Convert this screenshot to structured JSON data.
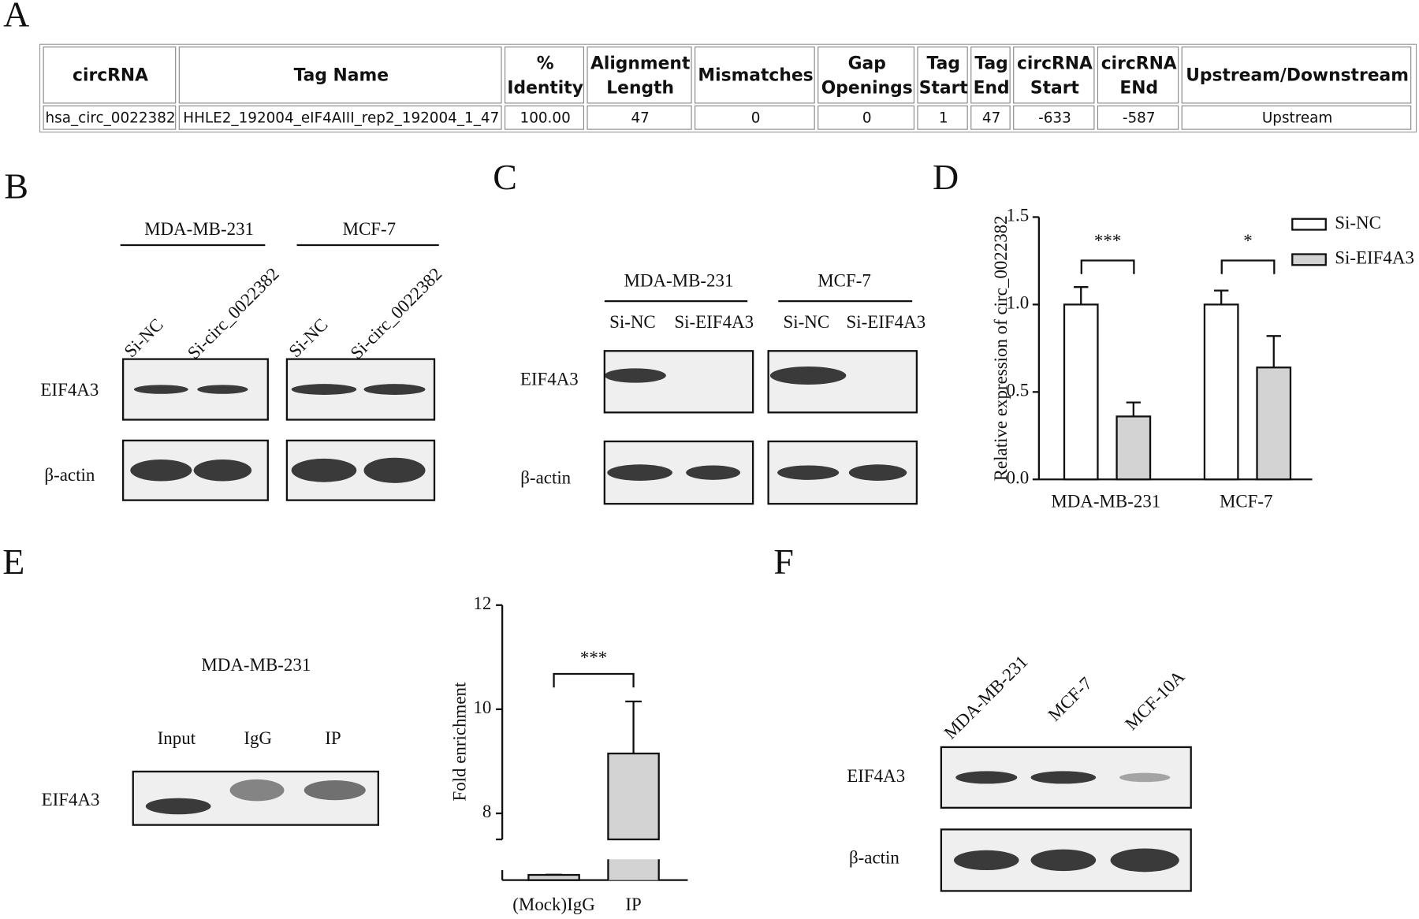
{
  "panel_labels": [
    "A",
    "B",
    "C",
    "D",
    "E",
    "F"
  ],
  "table": {
    "header": [
      [
        "circRNA"
      ],
      [
        "Tag Name"
      ],
      [
        "%",
        "Identity"
      ],
      [
        "Alignment",
        "Length"
      ],
      [
        "Mismatches"
      ],
      [
        "Gap",
        "Openings"
      ],
      [
        "Tag",
        "Start"
      ],
      [
        "Tag",
        "End"
      ],
      [
        "circRNA",
        "Start"
      ],
      [
        "circRNA",
        "ENd"
      ],
      [
        "Upstream/Downstream"
      ]
    ],
    "rows": [
      [
        "hsa_circ_0022382",
        "HHLE2_192004_eIF4AIII_rep2_192004_1_47",
        "100.00",
        "47",
        "0",
        "0",
        "1",
        "47",
        "-633",
        "-587",
        "Upstream"
      ]
    ]
  },
  "blot_b": {
    "cell_lines": [
      "MDA-MB-231",
      "MCF-7"
    ],
    "lanes": [
      "Si-NC",
      "Si-circ_0022382",
      "Si-NC",
      "Si-circ_0022382"
    ],
    "proteins": [
      "EIF4A3",
      "β-actin"
    ]
  },
  "blot_c": {
    "cell_lines": [
      "MDA-MB-231",
      "MCF-7"
    ],
    "lanes": [
      "Si-NC",
      "Si-EIF4A3",
      "Si-NC",
      "Si-EIF4A3"
    ],
    "proteins": [
      "EIF4A3",
      "β-actin"
    ]
  },
  "blot_e": {
    "cell_line": "MDA-MB-231",
    "lanes": [
      "Input",
      "IgG",
      "IP"
    ],
    "proteins": [
      "EIF4A3"
    ]
  },
  "blot_f": {
    "lanes": [
      "MDA-MB-231",
      "MCF-7",
      "MCF-10A"
    ],
    "proteins": [
      "EIF4A3",
      "β-actin"
    ]
  },
  "chart_data": [
    {
      "type": "bar",
      "ylabel": "Relative expression of circ_0022382",
      "categories": [
        "MDA-MB-231",
        "MCF-7"
      ],
      "series": [
        {
          "name": "Si-NC",
          "color": "#ffffff",
          "values": [
            1.0,
            1.0
          ],
          "errors": [
            0.1,
            0.08
          ]
        },
        {
          "name": "Si-EIF4A3",
          "color": "#d3d3d3",
          "values": [
            0.36,
            0.64
          ],
          "errors": [
            0.08,
            0.18
          ]
        }
      ],
      "significance": [
        "***",
        "*"
      ],
      "ylim": [
        0,
        1.5
      ],
      "yticks": [
        {
          "value": 0,
          "label": "0.0"
        },
        {
          "value": 0.5,
          "label": "0.5"
        },
        {
          "value": 1,
          "label": "1.0"
        },
        {
          "value": 1.5,
          "label": "1.5"
        }
      ]
    },
    {
      "type": "broken-bar",
      "ylabel": "Fold enrichment",
      "categories": [
        "(Mock)IgG",
        "IP"
      ],
      "values": [
        1.0,
        9.15
      ],
      "errors": [
        0.05,
        1.0
      ],
      "color": "#d3d3d3",
      "significance": [
        "***"
      ],
      "ylim": [
        0,
        12
      ],
      "y_break": [
        4,
        7.5
      ],
      "yticks": [
        8,
        10,
        12
      ]
    }
  ]
}
